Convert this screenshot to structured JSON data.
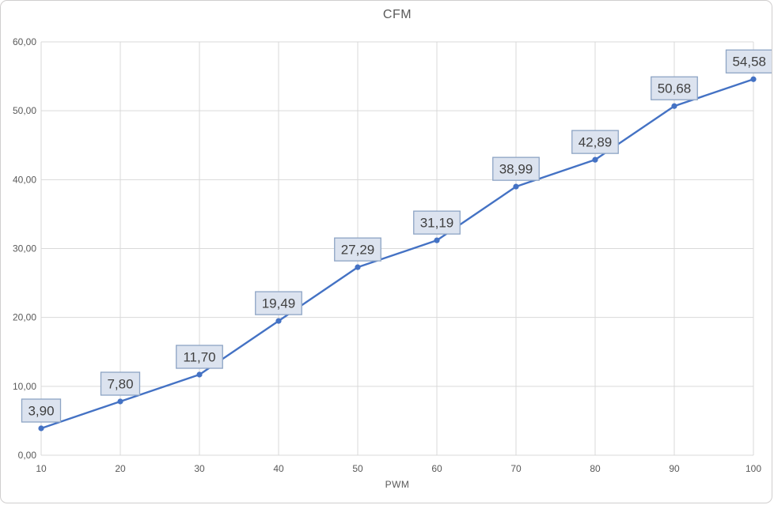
{
  "chart": {
    "title": "CFM",
    "x_axis_title": "PWM"
  },
  "chart_data": {
    "type": "line",
    "title": "CFM",
    "xlabel": "PWM",
    "ylabel": "",
    "x": [
      10,
      20,
      30,
      40,
      50,
      60,
      70,
      80,
      90,
      100
    ],
    "series": [
      {
        "name": "CFM",
        "values": [
          3.9,
          7.8,
          11.7,
          19.49,
          27.29,
          31.19,
          38.99,
          42.89,
          50.68,
          54.58
        ]
      }
    ],
    "point_labels": [
      "3,90",
      "7,80",
      "11,70",
      "19,49",
      "27,29",
      "31,19",
      "38,99",
      "42,89",
      "50,68",
      "54,58"
    ],
    "x_tick_labels": [
      "10",
      "20",
      "30",
      "40",
      "50",
      "60",
      "70",
      "80",
      "90",
      "100"
    ],
    "y_tick_labels": [
      "0,00",
      "10,00",
      "20,00",
      "30,00",
      "40,00",
      "50,00",
      "60,00"
    ],
    "y_tick_values": [
      0,
      10,
      20,
      30,
      40,
      50,
      60
    ],
    "xlim": [
      10,
      100
    ],
    "ylim": [
      0,
      60
    ],
    "grid": true,
    "legend": false,
    "colors": {
      "line": "#4472c4",
      "marker": "#4472c4",
      "label_fill": "#dce3ef",
      "label_border": "#8da4c4",
      "label_text": "#404040",
      "grid": "#d9d9d9",
      "axis_text": "#595959",
      "title_text": "#595959"
    }
  }
}
